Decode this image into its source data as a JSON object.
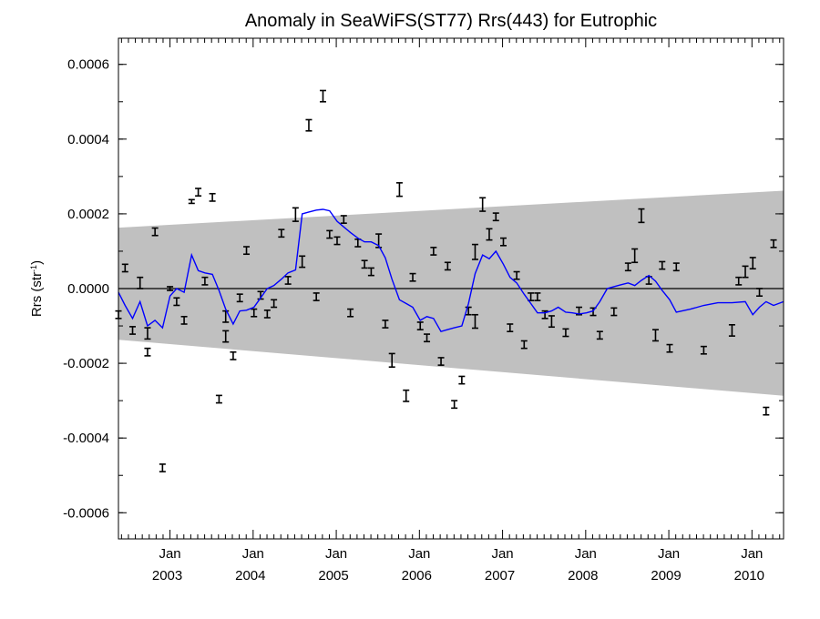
{
  "chart_data": {
    "type": "scatter",
    "title": "Anomaly in SeaWiFS(ST77) Rrs(443) for Eutrophic",
    "ylabel": "Rrs (str",
    "ylabel_sup": "-1",
    "ylabel_end": ")",
    "xlim": [
      2002.38,
      2010.38
    ],
    "ylim": [
      -0.00067,
      0.00067
    ],
    "yticks": [
      {
        "value": 0.0006,
        "label": "0.0006"
      },
      {
        "value": 0.0004,
        "label": "0.0004"
      },
      {
        "value": 0.0002,
        "label": "0.0002"
      },
      {
        "value": 0.0,
        "label": "0.0000"
      },
      {
        "value": -0.0002,
        "label": "-0.0002"
      },
      {
        "value": -0.0004,
        "label": "-0.0004"
      },
      {
        "value": -0.0006,
        "label": "-0.0006"
      }
    ],
    "xticks": [
      {
        "value": 2003.0,
        "month": "Jan",
        "year": "2003"
      },
      {
        "value": 2004.0,
        "month": "Jan",
        "year": "2004"
      },
      {
        "value": 2005.0,
        "month": "Jan",
        "year": "2005"
      },
      {
        "value": 2006.0,
        "month": "Jan",
        "year": "2006"
      },
      {
        "value": 2007.0,
        "month": "Jan",
        "year": "2007"
      },
      {
        "value": 2008.0,
        "month": "Jan",
        "year": "2008"
      },
      {
        "value": 2009.0,
        "month": "Jan",
        "year": "2009"
      },
      {
        "value": 2010.0,
        "month": "Jan",
        "year": "2010"
      }
    ],
    "confidence_band": {
      "color": "#c0c0c0",
      "x": [
        2002.38,
        2010.38
      ],
      "upper": [
        0.000163,
        0.000262
      ],
      "lower": [
        -0.000137,
        -0.000287
      ]
    },
    "zero_line": 0.0,
    "colors": {
      "smooth": "#0000ff",
      "points": "#000000",
      "band": "#c0c0c0"
    },
    "points": [
      {
        "x": 2002.38,
        "y": -7e-05,
        "err": 1e-05
      },
      {
        "x": 2002.46,
        "y": 5.5e-05,
        "err": 1e-05
      },
      {
        "x": 2002.55,
        "y": -0.000112,
        "err": 1e-05
      },
      {
        "x": 2002.64,
        "y": 1.5e-05,
        "err": 1.5e-05
      },
      {
        "x": 2002.73,
        "y": -0.00012,
        "err": 1.5e-05
      },
      {
        "x": 2002.73,
        "y": -0.00017,
        "err": 1e-05
      },
      {
        "x": 2002.82,
        "y": 0.000152,
        "err": 1e-05
      },
      {
        "x": 2002.91,
        "y": -0.00048,
        "err": 1e-05
      },
      {
        "x": 2003.0,
        "y": 0.0,
        "err": 5e-06
      },
      {
        "x": 2003.08,
        "y": -3.5e-05,
        "err": 1e-05
      },
      {
        "x": 2003.17,
        "y": -8.5e-05,
        "err": 1e-05
      },
      {
        "x": 2003.26,
        "y": 0.000233,
        "err": 5e-06
      },
      {
        "x": 2003.34,
        "y": 0.000258,
        "err": 1e-05
      },
      {
        "x": 2003.42,
        "y": 2e-05,
        "err": 1e-05
      },
      {
        "x": 2003.51,
        "y": 0.000244,
        "err": 1e-05
      },
      {
        "x": 2003.59,
        "y": -0.000296,
        "err": 1e-05
      },
      {
        "x": 2003.67,
        "y": -7.5e-05,
        "err": 1.5e-05
      },
      {
        "x": 2003.67,
        "y": -0.000128,
        "err": 1.5e-05
      },
      {
        "x": 2003.76,
        "y": -0.00018,
        "err": 1e-05
      },
      {
        "x": 2003.84,
        "y": -2.5e-05,
        "err": 1e-05
      },
      {
        "x": 2003.92,
        "y": 0.000102,
        "err": 1e-05
      },
      {
        "x": 2004.01,
        "y": -6.5e-05,
        "err": 1e-05
      },
      {
        "x": 2004.09,
        "y": -1.8e-05,
        "err": 1e-05
      },
      {
        "x": 2004.17,
        "y": -6.8e-05,
        "err": 1e-05
      },
      {
        "x": 2004.25,
        "y": -4e-05,
        "err": 1e-05
      },
      {
        "x": 2004.34,
        "y": 0.000148,
        "err": 1e-05
      },
      {
        "x": 2004.42,
        "y": 2.2e-05,
        "err": 1e-05
      },
      {
        "x": 2004.51,
        "y": 0.000198,
        "err": 1.8e-05
      },
      {
        "x": 2004.59,
        "y": 7.2e-05,
        "err": 1.5e-05
      },
      {
        "x": 2004.67,
        "y": 0.000437,
        "err": 1.5e-05
      },
      {
        "x": 2004.76,
        "y": -2.2e-05,
        "err": 1e-05
      },
      {
        "x": 2004.84,
        "y": 0.000515,
        "err": 1.5e-05
      },
      {
        "x": 2004.92,
        "y": 0.000145,
        "err": 1e-05
      },
      {
        "x": 2005.01,
        "y": 0.000128,
        "err": 1e-05
      },
      {
        "x": 2005.09,
        "y": 0.000185,
        "err": 1e-05
      },
      {
        "x": 2005.17,
        "y": -6.5e-05,
        "err": 1e-05
      },
      {
        "x": 2005.26,
        "y": 0.000122,
        "err": 1e-05
      },
      {
        "x": 2005.34,
        "y": 6.5e-05,
        "err": 1e-05
      },
      {
        "x": 2005.42,
        "y": 4.5e-05,
        "err": 1e-05
      },
      {
        "x": 2005.51,
        "y": 0.000128,
        "err": 1.8e-05
      },
      {
        "x": 2005.59,
        "y": -9.5e-05,
        "err": 1e-05
      },
      {
        "x": 2005.67,
        "y": -0.000192,
        "err": 1.8e-05
      },
      {
        "x": 2005.76,
        "y": 0.000265,
        "err": 1.8e-05
      },
      {
        "x": 2005.84,
        "y": -0.000287,
        "err": 1.5e-05
      },
      {
        "x": 2005.92,
        "y": 3e-05,
        "err": 1e-05
      },
      {
        "x": 2006.01,
        "y": -0.0001,
        "err": 1e-05
      },
      {
        "x": 2006.09,
        "y": -0.000132,
        "err": 1e-05
      },
      {
        "x": 2006.17,
        "y": 0.0001,
        "err": 1e-05
      },
      {
        "x": 2006.26,
        "y": -0.000195,
        "err": 1e-05
      },
      {
        "x": 2006.34,
        "y": 6e-05,
        "err": 1e-05
      },
      {
        "x": 2006.42,
        "y": -0.00031,
        "err": 1e-05
      },
      {
        "x": 2006.51,
        "y": -0.000245,
        "err": 1e-05
      },
      {
        "x": 2006.59,
        "y": -6e-05,
        "err": 1e-05
      },
      {
        "x": 2006.67,
        "y": -8.8e-05,
        "err": 1.8e-05
      },
      {
        "x": 2006.67,
        "y": 9.8e-05,
        "err": 2e-05
      },
      {
        "x": 2006.76,
        "y": 0.000225,
        "err": 1.8e-05
      },
      {
        "x": 2006.84,
        "y": 0.000145,
        "err": 1.5e-05
      },
      {
        "x": 2006.92,
        "y": 0.000192,
        "err": 1e-05
      },
      {
        "x": 2007.01,
        "y": 0.000125,
        "err": 1e-05
      },
      {
        "x": 2007.09,
        "y": -0.000105,
        "err": 1e-05
      },
      {
        "x": 2007.17,
        "y": 3.5e-05,
        "err": 1e-05
      },
      {
        "x": 2007.26,
        "y": -0.00015,
        "err": 1e-05
      },
      {
        "x": 2007.34,
        "y": -2.2e-05,
        "err": 1e-05
      },
      {
        "x": 2007.42,
        "y": -2.2e-05,
        "err": 1e-05
      },
      {
        "x": 2007.51,
        "y": -7e-05,
        "err": 1e-05
      },
      {
        "x": 2007.59,
        "y": -8.8e-05,
        "err": 1.5e-05
      },
      {
        "x": 2007.76,
        "y": -0.000118,
        "err": 1e-05
      },
      {
        "x": 2007.92,
        "y": -6e-05,
        "err": 1e-05
      },
      {
        "x": 2008.09,
        "y": -6.2e-05,
        "err": 1e-05
      },
      {
        "x": 2008.17,
        "y": -0.000125,
        "err": 1e-05
      },
      {
        "x": 2008.34,
        "y": -6.2e-05,
        "err": 1e-05
      },
      {
        "x": 2008.51,
        "y": 5.8e-05,
        "err": 1e-05
      },
      {
        "x": 2008.59,
        "y": 8.8e-05,
        "err": 1.8e-05
      },
      {
        "x": 2008.67,
        "y": 0.000195,
        "err": 1.8e-05
      },
      {
        "x": 2008.76,
        "y": 2.2e-05,
        "err": 1e-05
      },
      {
        "x": 2008.84,
        "y": -0.000125,
        "err": 1.5e-05
      },
      {
        "x": 2008.92,
        "y": 6.2e-05,
        "err": 1e-05
      },
      {
        "x": 2009.01,
        "y": -0.00016,
        "err": 1e-05
      },
      {
        "x": 2009.09,
        "y": 5.8e-05,
        "err": 1e-05
      },
      {
        "x": 2009.42,
        "y": -0.000165,
        "err": 1e-05
      },
      {
        "x": 2009.76,
        "y": -0.000112,
        "err": 1.5e-05
      },
      {
        "x": 2009.84,
        "y": 2e-05,
        "err": 1e-05
      },
      {
        "x": 2009.92,
        "y": 4.5e-05,
        "err": 1.5e-05
      },
      {
        "x": 2010.01,
        "y": 6.8e-05,
        "err": 1.5e-05
      },
      {
        "x": 2010.09,
        "y": -1e-05,
        "err": 1e-05
      },
      {
        "x": 2010.17,
        "y": -0.000328,
        "err": 1e-05
      },
      {
        "x": 2010.26,
        "y": 0.00012,
        "err": 1e-05
      }
    ],
    "smooth_line": {
      "x": [
        2002.38,
        2002.46,
        2002.55,
        2002.64,
        2002.73,
        2002.82,
        2002.91,
        2003.0,
        2003.08,
        2003.17,
        2003.26,
        2003.34,
        2003.42,
        2003.51,
        2003.59,
        2003.67,
        2003.76,
        2003.84,
        2003.92,
        2004.01,
        2004.09,
        2004.17,
        2004.25,
        2004.34,
        2004.42,
        2004.51,
        2004.59,
        2004.67,
        2004.76,
        2004.84,
        2004.92,
        2005.01,
        2005.09,
        2005.17,
        2005.26,
        2005.34,
        2005.42,
        2005.51,
        2005.59,
        2005.67,
        2005.76,
        2005.84,
        2005.92,
        2006.01,
        2006.09,
        2006.17,
        2006.26,
        2006.34,
        2006.42,
        2006.51,
        2006.59,
        2006.67,
        2006.76,
        2006.84,
        2006.92,
        2007.01,
        2007.09,
        2007.17,
        2007.26,
        2007.34,
        2007.42,
        2007.51,
        2007.59,
        2007.67,
        2007.76,
        2007.84,
        2007.92,
        2008.01,
        2008.09,
        2008.17,
        2008.26,
        2008.34,
        2008.42,
        2008.51,
        2008.59,
        2008.67,
        2008.76,
        2008.84,
        2008.92,
        2009.01,
        2009.09,
        2009.26,
        2009.42,
        2009.59,
        2009.76,
        2009.92,
        2010.01,
        2010.09,
        2010.17,
        2010.26,
        2010.38
      ],
      "y": [
        -1e-05,
        -4.5e-05,
        -8e-05,
        -3.5e-05,
        -0.0001,
        -8.5e-05,
        -0.000105,
        -2e-05,
        0.0,
        -1e-05,
        9e-05,
        4.8e-05,
        4.2e-05,
        3.8e-05,
        -5e-06,
        -5.5e-05,
        -9.5e-05,
        -6e-05,
        -5.8e-05,
        -5e-05,
        -2.5e-05,
        0.0,
        8e-06,
        2.5e-05,
        4.2e-05,
        5e-05,
        0.0002,
        0.000205,
        0.00021,
        0.000212,
        0.000208,
        0.00018,
        0.000165,
        0.00015,
        0.000135,
        0.000125,
        0.000125,
        0.000115,
        8.2e-05,
        2.5e-05,
        -3e-05,
        -4e-05,
        -5e-05,
        -8.5e-05,
        -7.5e-05,
        -8e-05,
        -0.000115,
        -0.00011,
        -0.000105,
        -0.0001,
        -4e-05,
        4e-05,
        9e-05,
        8e-05,
        0.0001,
        6.5e-05,
        3e-05,
        1.5e-05,
        -1.5e-05,
        -4e-05,
        -6.5e-05,
        -6.5e-05,
        -6e-05,
        -5e-05,
        -6.3e-05,
        -6.5e-05,
        -6.8e-05,
        -6.5e-05,
        -6e-05,
        -3.5e-05,
        0.0,
        5e-06,
        1e-05,
        1.5e-05,
        8e-06,
        2.2e-05,
        3.5e-05,
        2e-05,
        -5e-06,
        -3e-05,
        -6.3e-05,
        -5.5e-05,
        -4.5e-05,
        -3.8e-05,
        -3.8e-05,
        -3.5e-05,
        -7e-05,
        -5e-05,
        -3.5e-05,
        -4.5e-05,
        -3.5e-05
      ]
    }
  }
}
